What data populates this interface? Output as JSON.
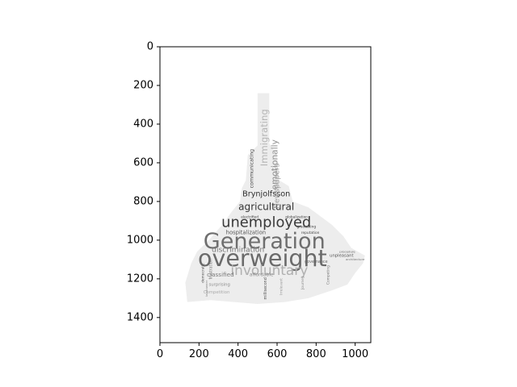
{
  "chart_data": {
    "type": "image",
    "subtype": "word cloud rendered on pixel axes",
    "title": "",
    "xlabel": "",
    "ylabel": "",
    "xlim": [
      0,
      1080
    ],
    "ylim": [
      1530,
      0
    ],
    "y_inverted": true,
    "x_ticks": [
      0,
      200,
      400,
      600,
      800,
      1000
    ],
    "y_ticks": [
      0,
      200,
      400,
      600,
      800,
      1000,
      1200,
      1400
    ],
    "grid": false,
    "legend": "none",
    "image_extent": {
      "x": [
        0,
        1080
      ],
      "y": [
        1530,
        0
      ]
    },
    "mask_outline_data_units": [
      [
        500,
        240
      ],
      [
        560,
        240
      ],
      [
        560,
        500
      ],
      [
        600,
        560
      ],
      [
        610,
        690
      ],
      [
        660,
        720
      ],
      [
        680,
        800
      ],
      [
        760,
        830
      ],
      [
        800,
        860
      ],
      [
        880,
        920
      ],
      [
        940,
        980
      ],
      [
        980,
        1040
      ],
      [
        1050,
        1080
      ],
      [
        1040,
        1120
      ],
      [
        1000,
        1170
      ],
      [
        960,
        1230
      ],
      [
        880,
        1260
      ],
      [
        760,
        1300
      ],
      [
        640,
        1320
      ],
      [
        500,
        1330
      ],
      [
        380,
        1320
      ],
      [
        260,
        1310
      ],
      [
        140,
        1320
      ],
      [
        130,
        1220
      ],
      [
        160,
        1120
      ],
      [
        190,
        1060
      ],
      [
        250,
        1000
      ],
      [
        320,
        920
      ],
      [
        370,
        850
      ],
      [
        410,
        800
      ],
      [
        420,
        730
      ],
      [
        440,
        690
      ],
      [
        450,
        560
      ],
      [
        500,
        510
      ]
    ],
    "words": [
      {
        "text": "Generation",
        "x": 535,
        "y": 1010,
        "size": 112,
        "color": "#6e6e6e",
        "vertical": false
      },
      {
        "text": "overweight",
        "x": 525,
        "y": 1100,
        "size": 118,
        "color": "#6a6a6a",
        "vertical": false
      },
      {
        "text": "unemployed",
        "x": 545,
        "y": 910,
        "size": 74,
        "color": "#3a3a3a",
        "vertical": false
      },
      {
        "text": "involuntary",
        "x": 560,
        "y": 1160,
        "size": 70,
        "color": "#b0b0b0",
        "vertical": false
      },
      {
        "text": "agricultural",
        "x": 545,
        "y": 830,
        "size": 50,
        "color": "#333333",
        "vertical": false
      },
      {
        "text": "Brynjolfsson",
        "x": 545,
        "y": 760,
        "size": 40,
        "color": "#2e2e2e",
        "vertical": false
      },
      {
        "text": "discrimination",
        "x": 400,
        "y": 1050,
        "size": 38,
        "color": "#777777",
        "vertical": false
      },
      {
        "text": "hospitalization",
        "x": 440,
        "y": 960,
        "size": 28,
        "color": "#555555",
        "vertical": false
      },
      {
        "text": "classified",
        "x": 310,
        "y": 1180,
        "size": 30,
        "color": "#7a7a7a",
        "vertical": false
      },
      {
        "text": "surprising",
        "x": 305,
        "y": 1230,
        "size": 22,
        "color": "#8a8a8a",
        "vertical": false
      },
      {
        "text": "Competition",
        "x": 290,
        "y": 1270,
        "size": 22,
        "color": "#aaaaaa",
        "vertical": false
      },
      {
        "text": "affordable",
        "x": 520,
        "y": 1180,
        "size": 24,
        "color": "#8a8a8a",
        "vertical": false
      },
      {
        "text": "unpleasant",
        "x": 930,
        "y": 1080,
        "size": 22,
        "color": "#555555",
        "vertical": false
      },
      {
        "text": "governance",
        "x": 800,
        "y": 1110,
        "size": 20,
        "color": "#666666",
        "vertical": false
      },
      {
        "text": "graduating",
        "x": 750,
        "y": 930,
        "size": 18,
        "color": "#444444",
        "vertical": false
      },
      {
        "text": "reputation",
        "x": 770,
        "y": 960,
        "size": 18,
        "color": "#444444",
        "vertical": false
      },
      {
        "text": "globalization",
        "x": 700,
        "y": 880,
        "size": 18,
        "color": "#444444",
        "vertical": false
      },
      {
        "text": "electrified",
        "x": 460,
        "y": 880,
        "size": 18,
        "color": "#444444",
        "vertical": false
      },
      {
        "text": "democratic",
        "x": 220,
        "y": 1170,
        "size": 18,
        "color": "#555555",
        "vertical": true
      },
      {
        "text": "frustration",
        "x": 260,
        "y": 1150,
        "size": 20,
        "color": "#777777",
        "vertical": true
      },
      {
        "text": "millisecond",
        "x": 540,
        "y": 1250,
        "size": 20,
        "color": "#555555",
        "vertical": true
      },
      {
        "text": "communicating",
        "x": 470,
        "y": 630,
        "size": 26,
        "color": "#444444",
        "vertical": true
      },
      {
        "text": "Immigrating",
        "x": 535,
        "y": 470,
        "size": 48,
        "color": "#b5b5b5",
        "vertical": true
      },
      {
        "text": "emotionally",
        "x": 590,
        "y": 610,
        "size": 44,
        "color": "#8f8f8f",
        "vertical": true
      },
      {
        "text": "Newspapers",
        "x": 600,
        "y": 720,
        "size": 38,
        "color": "#9c9c9c",
        "vertical": true
      },
      {
        "text": "Competing",
        "x": 860,
        "y": 1180,
        "size": 18,
        "color": "#777777",
        "vertical": true
      },
      {
        "text": "architecture",
        "x": 1000,
        "y": 1100,
        "size": 16,
        "color": "#777777",
        "vertical": false
      },
      {
        "text": "procedure",
        "x": 960,
        "y": 1060,
        "size": 16,
        "color": "#666666",
        "vertical": false
      },
      {
        "text": "Journey",
        "x": 730,
        "y": 1220,
        "size": 18,
        "color": "#888888",
        "vertical": true
      },
      {
        "text": "Irrelevant",
        "x": 620,
        "y": 1240,
        "size": 18,
        "color": "#999999",
        "vertical": true
      },
      {
        "text": "landowner",
        "x": 240,
        "y": 1250,
        "size": 16,
        "color": "#888888",
        "vertical": true
      }
    ]
  }
}
